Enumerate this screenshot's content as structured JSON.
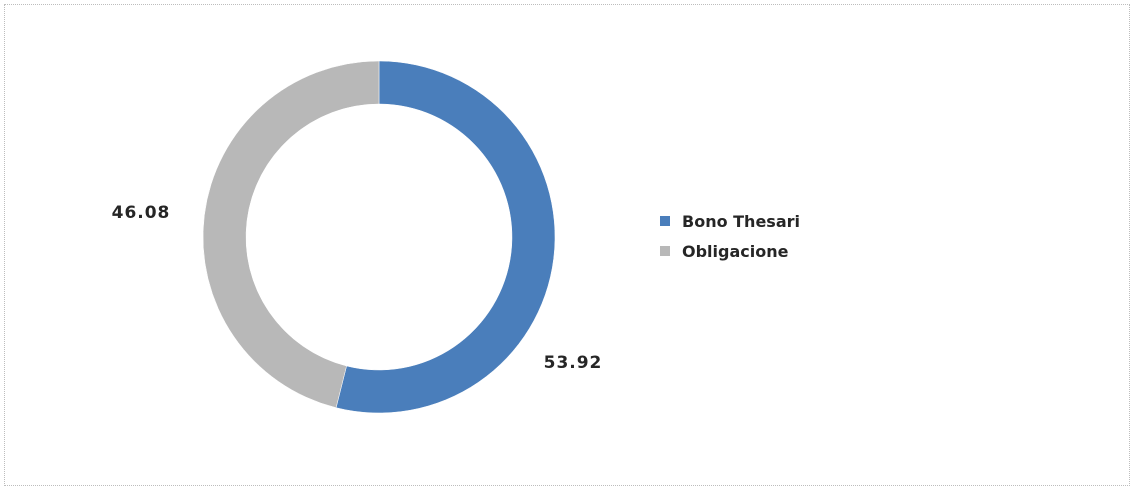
{
  "chart_data": {
    "type": "pie",
    "variant": "doughnut",
    "title": "",
    "categories": [
      "Bono Thesari",
      "Obligacione"
    ],
    "values": [
      53.92,
      46.08
    ],
    "data_labels": [
      "53.92",
      "46.08"
    ],
    "colors": [
      "#4a7ebb",
      "#b8b8b8"
    ],
    "legend": {
      "placement": "right",
      "entries": [
        {
          "label": "Bono Thesari",
          "color": "#4a7ebb"
        },
        {
          "label": "Obligacione",
          "color": "#b8b8b8"
        }
      ]
    }
  }
}
